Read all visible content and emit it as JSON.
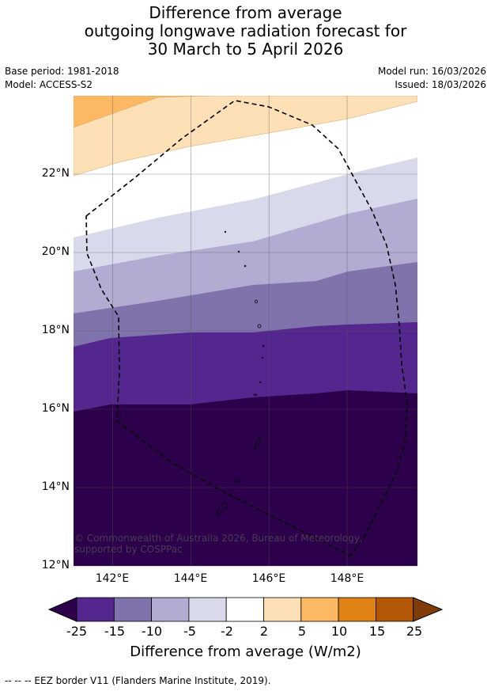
{
  "title": {
    "line1": "Difference from average",
    "line2": "outgoing longwave radiation forecast for",
    "line3": "30 March to 5 April 2026"
  },
  "meta": {
    "base_period": "Base period: 1981-2018",
    "model": "Model: ACCESS-S2",
    "model_run": "Model run: 16/03/2026",
    "issued": "Issued: 18/03/2026"
  },
  "map": {
    "lat_range": [
      12,
      24
    ],
    "lon_range": [
      141,
      149.8
    ],
    "lat_ticks": [
      "22°N",
      "20°N",
      "18°N",
      "16°N",
      "14°N",
      "12°N"
    ],
    "lon_ticks": [
      "142°E",
      "144°E",
      "146°E",
      "148°E"
    ],
    "lat_values": [
      22,
      20,
      18,
      16,
      14,
      12
    ],
    "lon_values": [
      142,
      144,
      146,
      148
    ],
    "copyright": "© Commonwealth of Australia 2026, Bureau of Meteorology, supported by COSPPac"
  },
  "colorbar": {
    "ticks": [
      "-25",
      "-15",
      "-10",
      "-5",
      "-2",
      "2",
      "5",
      "10",
      "15",
      "25"
    ],
    "colors": [
      "#54278f",
      "#8073ac",
      "#b2abd2",
      "#d8daeb",
      "#ffffff",
      "#fee0b6",
      "#fdb863",
      "#e08214",
      "#b35806"
    ],
    "extend_low": "#2d004b",
    "extend_high": "#7f3b08",
    "label": "Difference from average (W/m2)"
  },
  "footer": "--  --  -- EEZ border V11 (Flanders Marine Institute, 2019)."
}
